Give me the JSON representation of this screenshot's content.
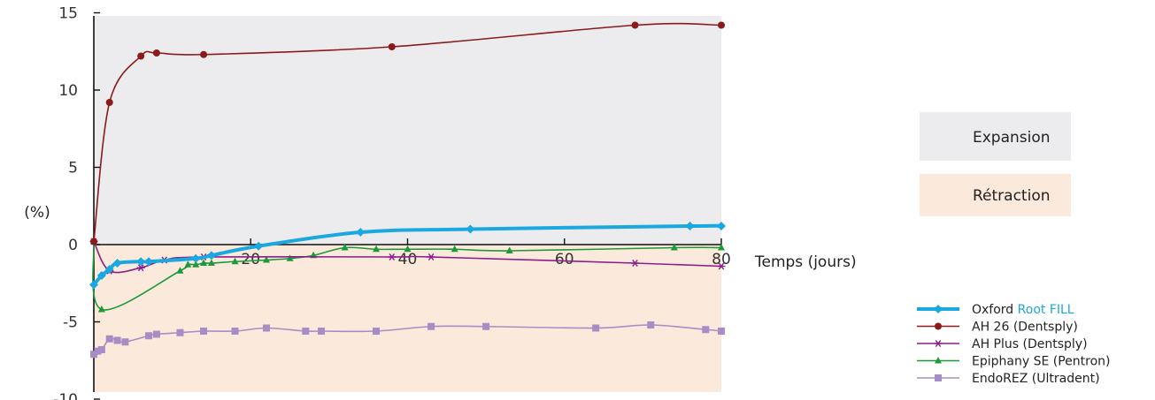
{
  "chart_data": {
    "type": "line",
    "title": "",
    "ylabel": "(%)",
    "xlabel": "Temps (jours)",
    "xlim": [
      0,
      80
    ],
    "ylim": [
      -10,
      15
    ],
    "xticks": [
      20,
      40,
      60,
      80
    ],
    "yticks": [
      -10,
      -5,
      0,
      5,
      10,
      15
    ],
    "ytick_labels": [
      "-10",
      "-5",
      "0",
      "5",
      "10",
      "15"
    ],
    "regions": [
      {
        "label": "Expansion",
        "color": "#ececef",
        "from": 0,
        "to": 15
      },
      {
        "label": "Rétraction",
        "color": "#fbeadb",
        "from": -10,
        "to": 0
      }
    ],
    "series": [
      {
        "name": "Oxford Root FILL",
        "name_parts": [
          "Oxford ",
          "Root FILL"
        ],
        "color": "#1aa8e0",
        "marker": "diamond",
        "width": 4,
        "x": [
          0,
          1,
          2,
          3,
          6,
          7,
          13,
          15,
          21,
          34,
          48,
          76,
          80
        ],
        "y": [
          -2.6,
          -2.0,
          -1.6,
          -1.2,
          -1.1,
          -1.1,
          -0.9,
          -0.7,
          -0.1,
          0.8,
          1.0,
          1.2,
          1.2
        ]
      },
      {
        "name": "AH 26 (Dentsply)",
        "color": "#8b1a1a",
        "marker": "circle",
        "width": 1.6,
        "x": [
          0,
          2,
          6,
          8,
          14,
          38,
          69,
          80
        ],
        "y": [
          0.2,
          9.2,
          12.2,
          12.4,
          12.3,
          12.8,
          14.2,
          14.2
        ]
      },
      {
        "name": "AH Plus (Dentsply)",
        "color": "#8a1e8a",
        "marker": "asterisk",
        "width": 1.6,
        "x": [
          0,
          2,
          6,
          9,
          14,
          38,
          43,
          69,
          80
        ],
        "y": [
          0.2,
          -1.7,
          -1.5,
          -1.0,
          -0.8,
          -0.8,
          -0.8,
          -1.2,
          -1.4
        ]
      },
      {
        "name": "Epiphany SE (Pentron)",
        "color": "#1a9a3a",
        "marker": "triangle",
        "width": 1.6,
        "x": [
          0,
          1,
          11,
          12,
          13,
          14,
          15,
          18,
          22,
          25,
          28,
          32,
          36,
          40,
          46,
          53,
          74,
          80
        ],
        "y": [
          0.2,
          -4.2,
          -1.7,
          -1.3,
          -1.3,
          -1.2,
          -1.2,
          -1.1,
          -1.0,
          -0.9,
          -0.7,
          -0.2,
          -0.3,
          -0.3,
          -0.3,
          -0.4,
          -0.2,
          -0.2
        ]
      },
      {
        "name": "EndoREZ (Ultradent)",
        "color": "#a98cc4",
        "marker": "square",
        "width": 1.6,
        "x": [
          0,
          0.5,
          1,
          2,
          3,
          4,
          7,
          8,
          11,
          14,
          18,
          22,
          27,
          29,
          36,
          43,
          50,
          64,
          71,
          78,
          80
        ],
        "y": [
          -7.1,
          -6.9,
          -6.8,
          -6.1,
          -6.2,
          -6.3,
          -5.9,
          -5.8,
          -5.7,
          -5.6,
          -5.6,
          -5.4,
          -5.6,
          -5.6,
          -5.6,
          -5.3,
          -5.3,
          -5.4,
          -5.2,
          -5.5,
          -5.6
        ]
      }
    ]
  }
}
